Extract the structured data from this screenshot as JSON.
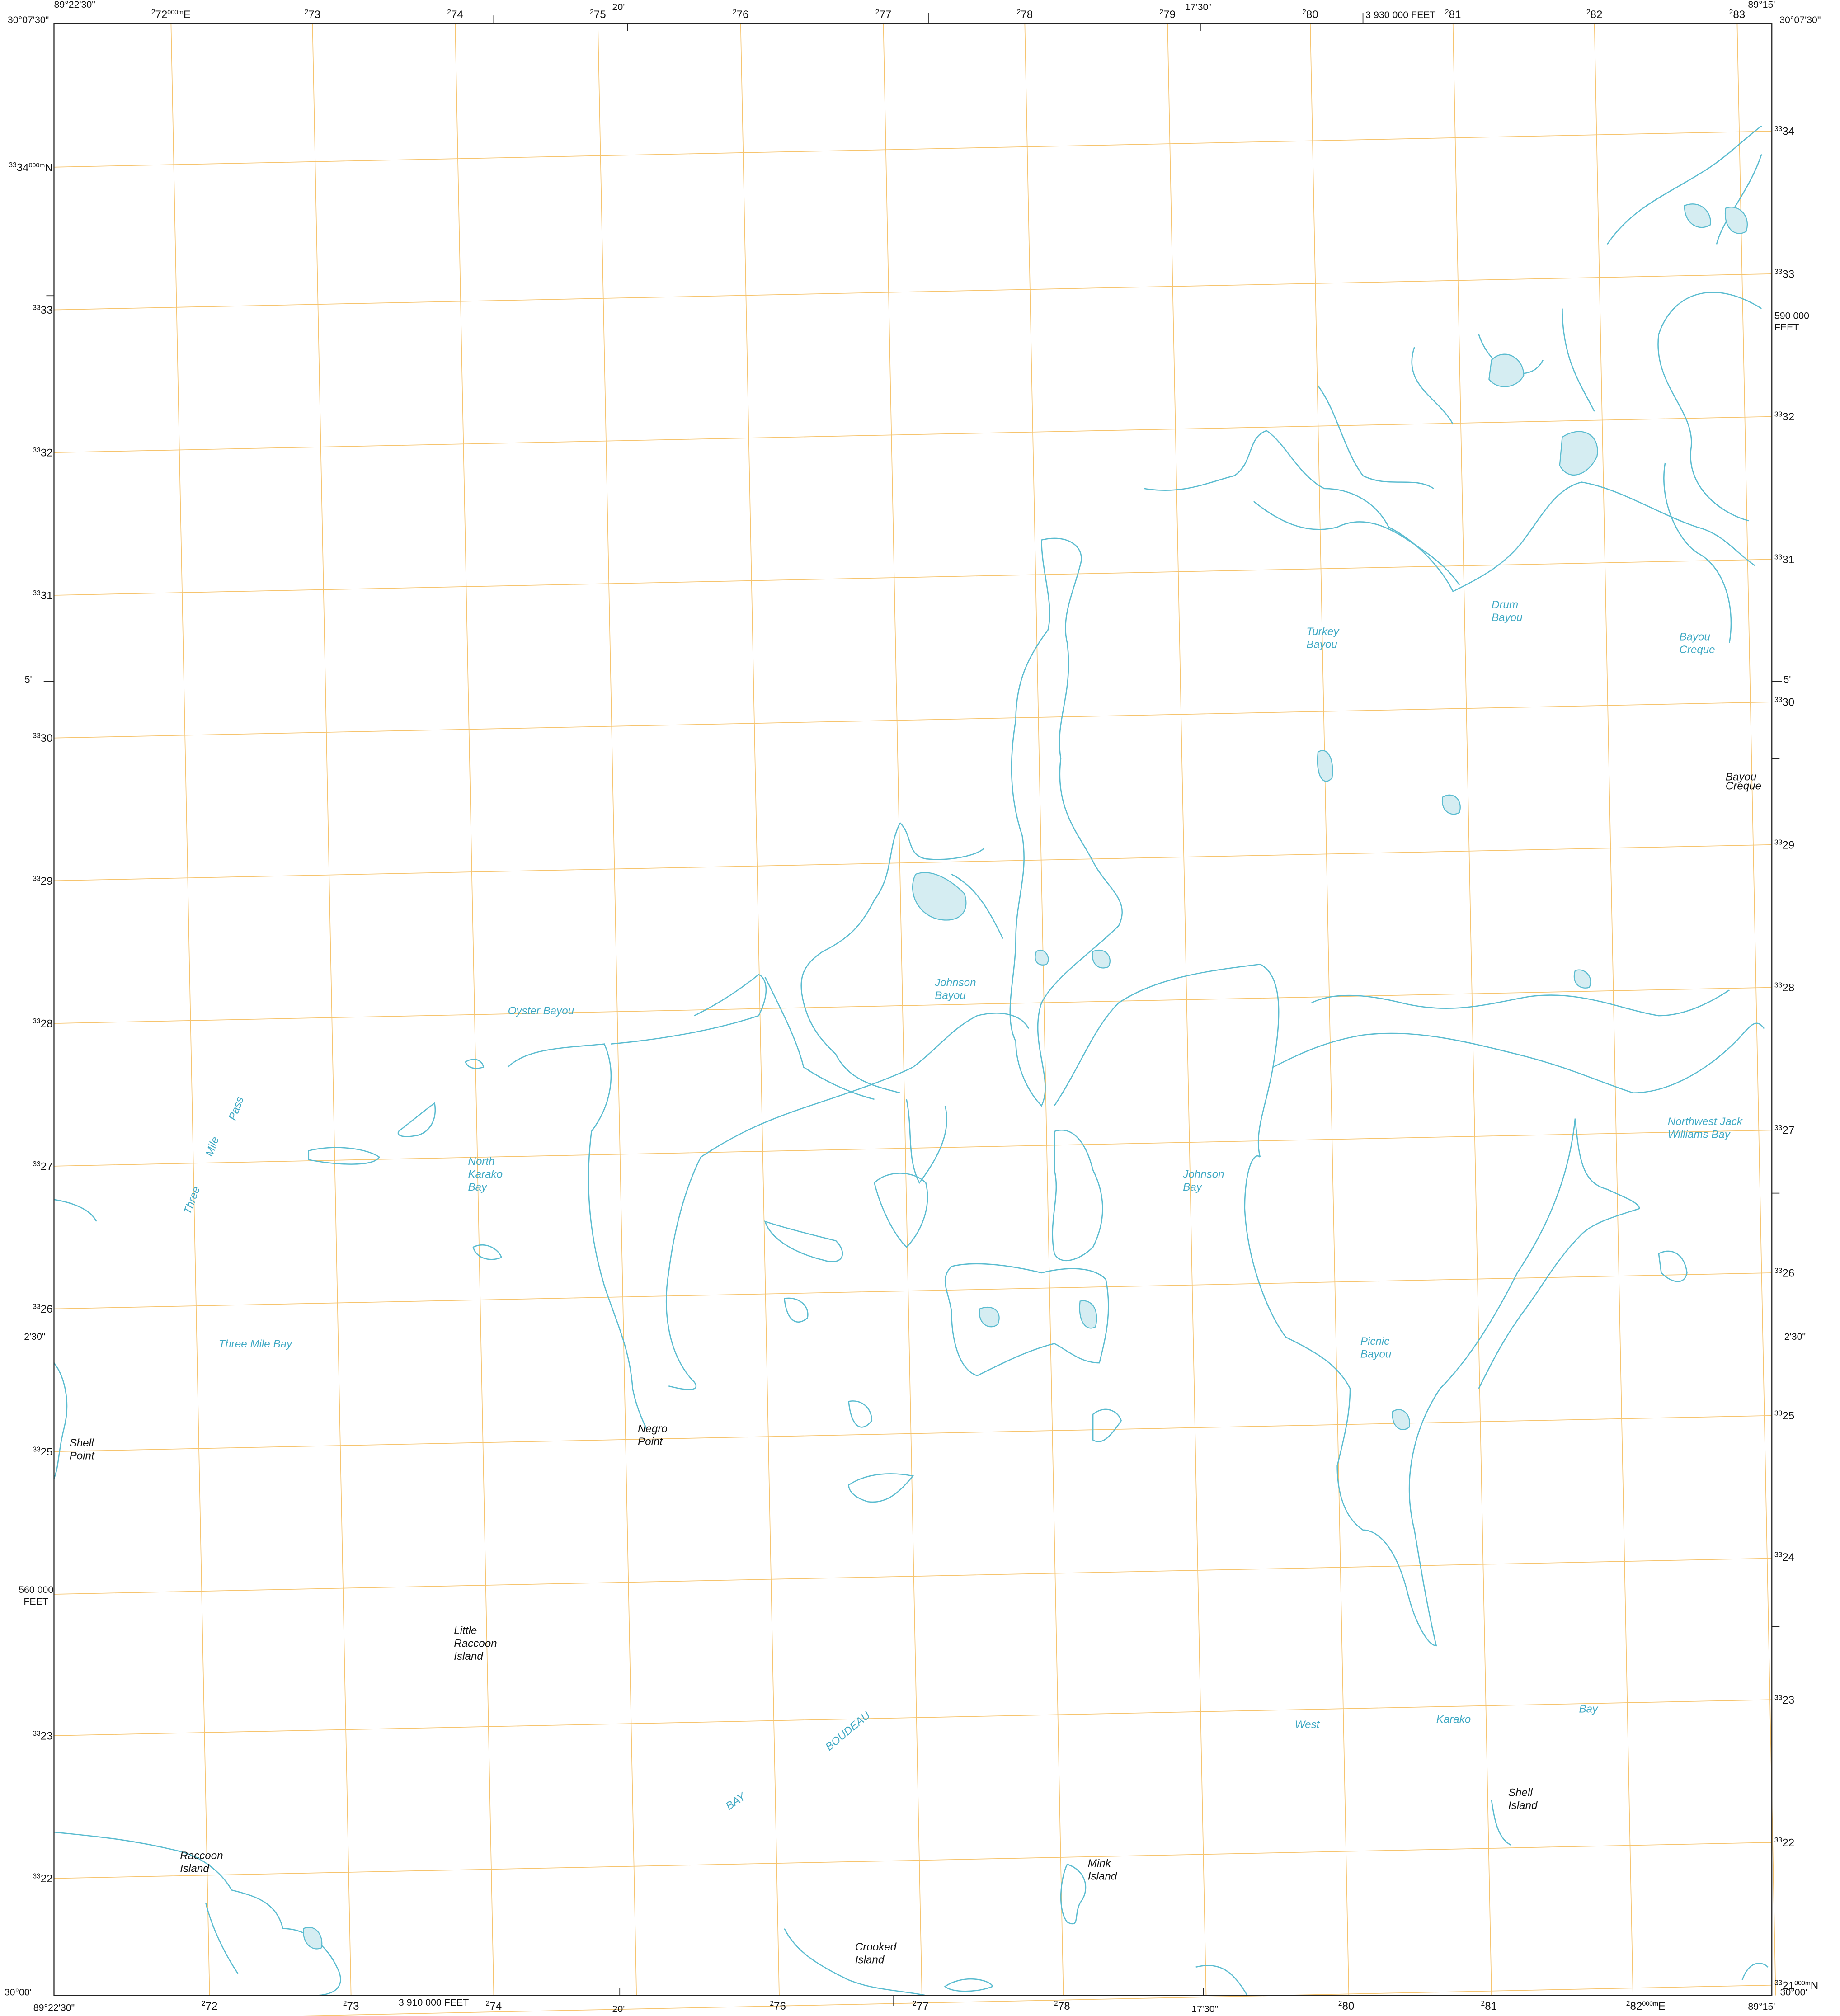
{
  "map": {
    "margin_labels": [
      "89°22'30\"",
      "30°07'30\"",
      "20'",
      "17'30\"",
      "3 930 000 FEET",
      "89°15'",
      "30°07'30\"",
      "5'",
      "2'30\"",
      "560 000 FEET",
      "590 000 FEET",
      "5'",
      "2'30\"",
      "30°00'",
      "89°22'30\"",
      "3 910 000 FEET",
      "20'",
      "17'30\"",
      "30°00'",
      "89°15'"
    ],
    "eastings_top": [
      {
        "sup": "2",
        "num": "72",
        "sup2": "000m",
        "post": "E"
      },
      {
        "sup": "2",
        "num": "73"
      },
      {
        "sup": "2",
        "num": "74"
      },
      {
        "sup": "2",
        "num": "75"
      },
      {
        "sup": "2",
        "num": "76"
      },
      {
        "sup": "2",
        "num": "77"
      },
      {
        "sup": "2",
        "num": "78"
      },
      {
        "sup": "2",
        "num": "79"
      },
      {
        "sup": "2",
        "num": "80"
      },
      {
        "sup": "2",
        "num": "81"
      },
      {
        "sup": "2",
        "num": "82"
      },
      {
        "sup": "2",
        "num": "83"
      }
    ],
    "eastings_bottom": [
      {
        "sup": "2",
        "num": "72"
      },
      {
        "sup": "2",
        "num": "73"
      },
      {
        "sup": "2",
        "num": "74"
      },
      {
        "sup": "2",
        "num": "76"
      },
      {
        "sup": "2",
        "num": "77"
      },
      {
        "sup": "2",
        "num": "78"
      },
      {
        "sup": "2",
        "num": "80"
      },
      {
        "sup": "2",
        "num": "81"
      },
      {
        "sup": "2",
        "num": "82",
        "sup2": "000m",
        "post": "E"
      }
    ],
    "northings_left": [
      {
        "sup": "33",
        "num": "34",
        "sup2": "000m",
        "post": "N"
      },
      {
        "sup": "33",
        "num": "33"
      },
      {
        "sup": "33",
        "num": "32"
      },
      {
        "sup": "33",
        "num": "31"
      },
      {
        "sup": "33",
        "num": "30"
      },
      {
        "sup": "33",
        "num": "29"
      },
      {
        "sup": "33",
        "num": "28"
      },
      {
        "sup": "33",
        "num": "27"
      },
      {
        "sup": "33",
        "num": "26"
      },
      {
        "sup": "33",
        "num": "25"
      },
      {
        "sup": "33",
        "num": "23"
      },
      {
        "sup": "33",
        "num": "22"
      }
    ],
    "northings_right": [
      {
        "sup": "33",
        "num": "34"
      },
      {
        "sup": "33",
        "num": "33"
      },
      {
        "sup": "33",
        "num": "32"
      },
      {
        "sup": "33",
        "num": "31"
      },
      {
        "sup": "33",
        "num": "30"
      },
      {
        "sup": "33",
        "num": "29"
      },
      {
        "sup": "33",
        "num": "28"
      },
      {
        "sup": "33",
        "num": "27"
      },
      {
        "sup": "33",
        "num": "26"
      },
      {
        "sup": "33",
        "num": "25"
      },
      {
        "sup": "33",
        "num": "24"
      },
      {
        "sup": "33",
        "num": "23"
      },
      {
        "sup": "33",
        "num": "22"
      },
      {
        "sup": "33",
        "num": "21",
        "sup2": "000m",
        "post": "N"
      }
    ],
    "places": [
      {
        "lines": [
          "Shell",
          "Point"
        ],
        "color": "#111111"
      },
      {
        "lines": [
          "Negro",
          "Point"
        ],
        "color": "#111111"
      },
      {
        "lines": [
          "Little",
          "Raccoon",
          "Island"
        ],
        "color": "#111111"
      },
      {
        "lines": [
          "Raccoon",
          "Island"
        ],
        "color": "#111111"
      },
      {
        "lines": [
          "Mink",
          "Island"
        ],
        "color": "#111111"
      },
      {
        "lines": [
          "Crooked",
          "Island"
        ],
        "color": "#111111"
      },
      {
        "lines": [
          "Shell",
          "Island"
        ],
        "color": "#111111"
      },
      {
        "lines": [
          "Oyster  Bayou"
        ],
        "color": "#3fa9c4"
      },
      {
        "lines": [
          "Three"
        ],
        "color": "#3fa9c4"
      },
      {
        "lines": [
          "Mile"
        ],
        "color": "#3fa9c4"
      },
      {
        "lines": [
          "Pass"
        ],
        "color": "#3fa9c4"
      },
      {
        "lines": [
          "North",
          "Karako",
          "Bay"
        ],
        "color": "#3fa9c4"
      },
      {
        "lines": [
          "Three Mile Bay"
        ],
        "color": "#3fa9c4"
      },
      {
        "lines": [
          "Johnson",
          "Bayou"
        ],
        "color": "#3fa9c4"
      },
      {
        "lines": [
          "Turkey",
          "Bayou"
        ],
        "color": "#3fa9c4"
      },
      {
        "lines": [
          "Drum",
          "Bayou"
        ],
        "color": "#3fa9c4"
      },
      {
        "lines": [
          "Bayou",
          "Creque"
        ],
        "color": "#3fa9c4"
      },
      {
        "lines": [
          "Bayou",
          "Creque"
        ],
        "color": "#111111"
      },
      {
        "lines": [
          "Northwest Jack",
          "Williams Bay"
        ],
        "color": "#3fa9c4"
      },
      {
        "lines": [
          "Johnson",
          "Bay"
        ],
        "color": "#3fa9c4"
      },
      {
        "lines": [
          "Picnic",
          "Bayou"
        ],
        "color": "#3fa9c4"
      },
      {
        "lines": [
          "West"
        ],
        "color": "#3fa9c4"
      },
      {
        "lines": [
          "Karako"
        ],
        "color": "#3fa9c4"
      },
      {
        "lines": [
          "Bay"
        ],
        "color": "#3fa9c4"
      },
      {
        "lines": [
          "BOUDEAU"
        ],
        "color": "#3fa9c4"
      },
      {
        "lines": [
          "BAY"
        ],
        "color": "#3fa9c4"
      }
    ]
  }
}
